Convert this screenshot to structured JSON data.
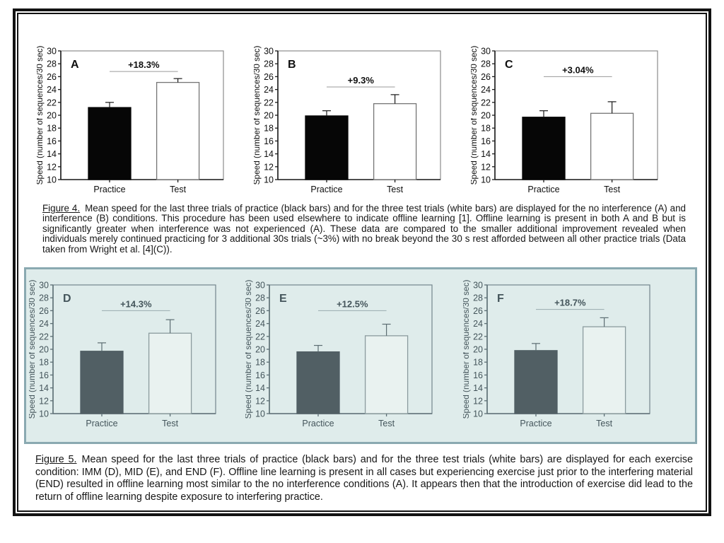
{
  "colors": {
    "panel_bg": "#dfeceb",
    "panel_border": "#8aa9b1",
    "top": {
      "frame": "#8c8c8c",
      "axis": "#1a1a1a",
      "text": "#0f0f0f",
      "bar_practice": "#060606",
      "bar_test": "#ffffff",
      "bar_test_stroke": "#757575",
      "err": "#1a1a1a",
      "sig": "#9a9a9a"
    },
    "bottom": {
      "frame": "#74868c",
      "axis": "#5d6f75",
      "text": "#44555b",
      "bar_practice": "#515f64",
      "bar_test": "#e9f2f0",
      "bar_test_stroke": "#8b9b9e",
      "err": "#5c6d72",
      "sig": "#9aabaf"
    }
  },
  "captions": {
    "figure4_label": "Figure 4.",
    "figure4_text": "Mean speed for the last three trials of practice (black bars) and for the three test trials (white bars) are displayed for the no interference (A) and interference (B) conditions.  This procedure has been used elsewhere to indicate offline learning [1].  Offline learning is present in both A and B but is significantly greater when interference was not experienced (A).  These data are compared to the smaller additional improvement revealed when individuals merely  continued practicing for 3 additional 30s trials (~3%) with no break beyond the 30 s rest afforded between all other practice trials (Data taken from Wright et al. [4](C)).",
    "figure5_label": "Figure 5.",
    "figure5_text": "Mean speed for the last three trials of practice (black bars) and for the three test trials (white bars) are displayed for each exercise condition: IMM (D), MID (E), and END (F). Offline line learning is present in all cases but experiencing exercise just prior to the interfering material (END) resulted in offline learning most similar to the no interference conditions (A).  It appears then that the introduction of exercise did lead to the return of offline learning despite exposure to interfering practice."
  },
  "chart_data": [
    {
      "type": "bar",
      "panel": "A",
      "row": "top",
      "categories": [
        "Practice",
        "Test"
      ],
      "values": [
        21.2,
        25.1
      ],
      "errors": [
        0.8,
        0.6
      ],
      "increase_label": "+18.3%",
      "sig_line_y": 26.8,
      "ylim": [
        10,
        30
      ],
      "ytick_step": 2,
      "ylabel": "Speed (number of sequences/30 sec)"
    },
    {
      "type": "bar",
      "panel": "B",
      "row": "top",
      "categories": [
        "Practice",
        "Test"
      ],
      "values": [
        19.9,
        21.8
      ],
      "errors": [
        0.8,
        1.4
      ],
      "increase_label": "+9.3%",
      "sig_line_y": 24.4,
      "ylim": [
        10,
        30
      ],
      "ytick_step": 2,
      "ylabel": "Speed (number of sequences/30 sec)"
    },
    {
      "type": "bar",
      "panel": "C",
      "row": "top",
      "categories": [
        "Practice",
        "Test"
      ],
      "values": [
        19.7,
        20.3
      ],
      "errors": [
        1.0,
        1.8
      ],
      "increase_label": "+3.04%",
      "sig_line_y": 26.0,
      "ylim": [
        10,
        30
      ],
      "ytick_step": 2,
      "ylabel": "Speed (number of sequences/30 sec)"
    },
    {
      "type": "bar",
      "panel": "D",
      "row": "bottom",
      "categories": [
        "Practice",
        "Test"
      ],
      "values": [
        19.7,
        22.5
      ],
      "errors": [
        1.3,
        2.1
      ],
      "increase_label": "+14.3%",
      "sig_line_y": 26.0,
      "ylim": [
        10,
        30
      ],
      "ytick_step": 2,
      "ylabel": "Speed (number of sequences/30 sec)"
    },
    {
      "type": "bar",
      "panel": "E",
      "row": "bottom",
      "categories": [
        "Practice",
        "Test"
      ],
      "values": [
        19.6,
        22.1
      ],
      "errors": [
        1.0,
        1.8
      ],
      "increase_label": "+12.5%",
      "sig_line_y": 26.0,
      "ylim": [
        10,
        30
      ],
      "ytick_step": 2,
      "ylabel": "Speed (number of sequences/30 sec)"
    },
    {
      "type": "bar",
      "panel": "F",
      "row": "bottom",
      "categories": [
        "Practice",
        "Test"
      ],
      "values": [
        19.8,
        23.5
      ],
      "errors": [
        1.1,
        1.4
      ],
      "increase_label": "+18.7%",
      "sig_line_y": 26.2,
      "ylim": [
        10,
        30
      ],
      "ytick_step": 2,
      "ylabel": "Speed (number of sequences/30 sec)"
    }
  ]
}
